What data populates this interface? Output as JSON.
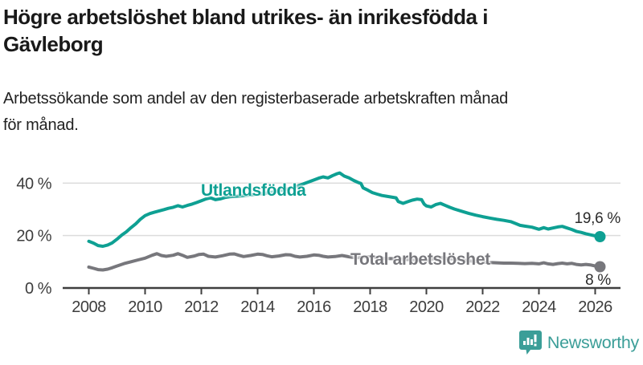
{
  "header": {
    "title_line1": "Högre arbetslöshet bland utrikes- än inrikesfödda i",
    "title_line2": "Gävleborg",
    "subtitle_line1": "Arbetssökande som andel av den registerbaserade arbetskraften månad",
    "subtitle_line2": "för månad."
  },
  "branding": {
    "logo_text": "Newsworthy",
    "logo_color": "#3b9e98"
  },
  "colors": {
    "accent_teal": "#0ea093",
    "neutral_gray": "#77777c",
    "axis_text": "#3d3d3d",
    "gridline": "#dcdcdc",
    "axis_line": "#3f3f3f"
  },
  "chart_data": {
    "type": "line",
    "title": "Högre arbetslöshet bland utrikes- än inrikesfödda i Gävleborg",
    "subtitle": "Arbetssökande som andel av den registerbaserade arbetskraften månad för månad.",
    "xlabel": "",
    "ylabel": "",
    "unit": "%",
    "grid": "horizontal",
    "legend_position": "inline-labels",
    "x_axis": {
      "range": [
        2007.6,
        2026.9
      ],
      "ticks": [
        {
          "value": 2008,
          "label": "2008"
        },
        {
          "value": 2010,
          "label": "2010"
        },
        {
          "value": 2012,
          "label": "2012"
        },
        {
          "value": 2014,
          "label": "2014"
        },
        {
          "value": 2016,
          "label": "2016"
        },
        {
          "value": 2018,
          "label": "2018"
        },
        {
          "value": 2020,
          "label": "2020"
        },
        {
          "value": 2022,
          "label": "2022"
        },
        {
          "value": 2024,
          "label": "2024"
        },
        {
          "value": 2026,
          "label": "2026"
        }
      ]
    },
    "y_axis": {
      "range": [
        0,
        46
      ],
      "ticks": [
        {
          "value": 0,
          "label": "0 %"
        },
        {
          "value": 20,
          "label": "20 %"
        },
        {
          "value": 40,
          "label": "40 %"
        }
      ]
    },
    "series": [
      {
        "name": "Utlandsfödda",
        "color": "#0ea093",
        "end_label": "19,6 %",
        "end_value": 19.6,
        "points": [
          [
            2008.0,
            17.8
          ],
          [
            2008.17,
            17.1
          ],
          [
            2008.33,
            16.2
          ],
          [
            2008.5,
            15.9
          ],
          [
            2008.67,
            16.4
          ],
          [
            2008.83,
            17.2
          ],
          [
            2009.0,
            18.6
          ],
          [
            2009.17,
            20.2
          ],
          [
            2009.33,
            21.4
          ],
          [
            2009.5,
            23.0
          ],
          [
            2009.67,
            24.5
          ],
          [
            2009.83,
            26.2
          ],
          [
            2010.0,
            27.6
          ],
          [
            2010.17,
            28.4
          ],
          [
            2010.33,
            28.9
          ],
          [
            2010.5,
            29.4
          ],
          [
            2010.67,
            29.9
          ],
          [
            2010.83,
            30.4
          ],
          [
            2011.0,
            30.8
          ],
          [
            2011.17,
            31.4
          ],
          [
            2011.33,
            30.9
          ],
          [
            2011.5,
            31.5
          ],
          [
            2011.67,
            32.0
          ],
          [
            2011.83,
            32.6
          ],
          [
            2012.0,
            33.3
          ],
          [
            2012.17,
            34.0
          ],
          [
            2012.33,
            34.4
          ],
          [
            2012.5,
            33.7
          ],
          [
            2012.67,
            34.0
          ],
          [
            2012.83,
            34.5
          ],
          [
            2013.0,
            34.8
          ],
          [
            2013.25,
            35.0
          ],
          [
            2013.5,
            35.2
          ],
          [
            2013.75,
            35.5
          ],
          [
            2014.0,
            35.8
          ],
          [
            2014.25,
            36.1
          ],
          [
            2014.5,
            36.5
          ],
          [
            2014.75,
            37.0
          ],
          [
            2015.0,
            37.6
          ],
          [
            2015.25,
            38.3
          ],
          [
            2015.5,
            39.2
          ],
          [
            2015.75,
            40.2
          ],
          [
            2016.0,
            41.2
          ],
          [
            2016.17,
            41.9
          ],
          [
            2016.33,
            42.4
          ],
          [
            2016.5,
            42.0
          ],
          [
            2016.67,
            42.9
          ],
          [
            2016.83,
            43.6
          ],
          [
            2016.92,
            43.9
          ],
          [
            2017.08,
            42.7
          ],
          [
            2017.25,
            42.0
          ],
          [
            2017.42,
            41.0
          ],
          [
            2017.58,
            40.2
          ],
          [
            2017.67,
            39.9
          ],
          [
            2017.75,
            38.2
          ],
          [
            2017.92,
            37.3
          ],
          [
            2018.08,
            36.4
          ],
          [
            2018.25,
            35.8
          ],
          [
            2018.42,
            35.3
          ],
          [
            2018.58,
            35.0
          ],
          [
            2018.75,
            34.7
          ],
          [
            2018.92,
            34.4
          ],
          [
            2019.0,
            33.0
          ],
          [
            2019.17,
            32.3
          ],
          [
            2019.33,
            32.9
          ],
          [
            2019.5,
            33.5
          ],
          [
            2019.67,
            33.9
          ],
          [
            2019.83,
            33.7
          ],
          [
            2019.92,
            32.0
          ],
          [
            2020.0,
            31.3
          ],
          [
            2020.17,
            30.9
          ],
          [
            2020.33,
            31.8
          ],
          [
            2020.5,
            32.3
          ],
          [
            2020.67,
            31.5
          ],
          [
            2020.83,
            30.8
          ],
          [
            2021.0,
            30.1
          ],
          [
            2021.25,
            29.3
          ],
          [
            2021.5,
            28.5
          ],
          [
            2021.75,
            27.8
          ],
          [
            2022.0,
            27.2
          ],
          [
            2022.25,
            26.7
          ],
          [
            2022.5,
            26.2
          ],
          [
            2022.75,
            25.8
          ],
          [
            2023.0,
            25.3
          ],
          [
            2023.17,
            24.6
          ],
          [
            2023.33,
            23.9
          ],
          [
            2023.5,
            23.6
          ],
          [
            2023.75,
            23.2
          ],
          [
            2024.0,
            22.4
          ],
          [
            2024.17,
            23.0
          ],
          [
            2024.33,
            22.5
          ],
          [
            2024.5,
            22.9
          ],
          [
            2024.67,
            23.3
          ],
          [
            2024.83,
            23.5
          ],
          [
            2025.0,
            22.9
          ],
          [
            2025.17,
            22.3
          ],
          [
            2025.33,
            21.6
          ],
          [
            2025.5,
            21.2
          ],
          [
            2025.67,
            20.7
          ],
          [
            2025.83,
            20.3
          ],
          [
            2026.0,
            19.9
          ],
          [
            2026.17,
            19.6
          ]
        ]
      },
      {
        "name": "Total arbetslöshet",
        "color": "#77777c",
        "end_label": "8 %",
        "end_value": 8,
        "points": [
          [
            2008.0,
            8.0
          ],
          [
            2008.17,
            7.5
          ],
          [
            2008.33,
            7.0
          ],
          [
            2008.5,
            6.9
          ],
          [
            2008.67,
            7.2
          ],
          [
            2008.83,
            7.7
          ],
          [
            2009.0,
            8.4
          ],
          [
            2009.25,
            9.3
          ],
          [
            2009.5,
            10.0
          ],
          [
            2009.75,
            10.7
          ],
          [
            2010.0,
            11.4
          ],
          [
            2010.25,
            12.5
          ],
          [
            2010.42,
            13.1
          ],
          [
            2010.58,
            12.4
          ],
          [
            2010.75,
            12.1
          ],
          [
            2011.0,
            12.5
          ],
          [
            2011.17,
            13.1
          ],
          [
            2011.33,
            12.5
          ],
          [
            2011.5,
            11.7
          ],
          [
            2011.75,
            12.2
          ],
          [
            2011.92,
            12.8
          ],
          [
            2012.08,
            12.9
          ],
          [
            2012.25,
            12.1
          ],
          [
            2012.5,
            11.8
          ],
          [
            2012.75,
            12.3
          ],
          [
            2013.0,
            12.9
          ],
          [
            2013.17,
            13.0
          ],
          [
            2013.33,
            12.5
          ],
          [
            2013.5,
            12.0
          ],
          [
            2013.75,
            12.4
          ],
          [
            2014.0,
            12.9
          ],
          [
            2014.17,
            12.8
          ],
          [
            2014.33,
            12.3
          ],
          [
            2014.5,
            11.9
          ],
          [
            2014.75,
            12.2
          ],
          [
            2015.0,
            12.7
          ],
          [
            2015.17,
            12.6
          ],
          [
            2015.33,
            12.1
          ],
          [
            2015.5,
            11.8
          ],
          [
            2015.75,
            12.1
          ],
          [
            2016.0,
            12.6
          ],
          [
            2016.17,
            12.5
          ],
          [
            2016.33,
            12.1
          ],
          [
            2016.5,
            11.8
          ],
          [
            2016.75,
            12.0
          ],
          [
            2017.0,
            12.4
          ],
          [
            2017.25,
            11.9
          ],
          [
            2017.5,
            11.5
          ],
          [
            2017.75,
            11.7
          ],
          [
            2018.0,
            12.0
          ],
          [
            2018.25,
            11.6
          ],
          [
            2018.5,
            11.3
          ],
          [
            2018.75,
            11.2
          ],
          [
            2019.0,
            11.1
          ],
          [
            2019.25,
            10.9
          ],
          [
            2019.5,
            10.8
          ],
          [
            2019.75,
            10.7
          ],
          [
            2020.0,
            10.5
          ],
          [
            2020.25,
            11.2
          ],
          [
            2020.5,
            11.6
          ],
          [
            2020.75,
            11.3
          ],
          [
            2021.0,
            11.0
          ],
          [
            2021.25,
            10.7
          ],
          [
            2021.5,
            10.4
          ],
          [
            2021.75,
            10.1
          ],
          [
            2022.0,
            9.9
          ],
          [
            2022.25,
            9.7
          ],
          [
            2022.5,
            9.6
          ],
          [
            2022.75,
            9.5
          ],
          [
            2023.0,
            9.5
          ],
          [
            2023.25,
            9.4
          ],
          [
            2023.5,
            9.3
          ],
          [
            2023.75,
            9.4
          ],
          [
            2024.0,
            9.2
          ],
          [
            2024.17,
            9.6
          ],
          [
            2024.33,
            9.2
          ],
          [
            2024.5,
            9.0
          ],
          [
            2024.67,
            9.3
          ],
          [
            2024.83,
            9.5
          ],
          [
            2025.0,
            9.2
          ],
          [
            2025.17,
            9.4
          ],
          [
            2025.33,
            9.0
          ],
          [
            2025.5,
            8.8
          ],
          [
            2025.67,
            9.0
          ],
          [
            2025.83,
            8.8
          ],
          [
            2026.0,
            8.4
          ],
          [
            2026.17,
            8.1
          ]
        ]
      }
    ]
  }
}
